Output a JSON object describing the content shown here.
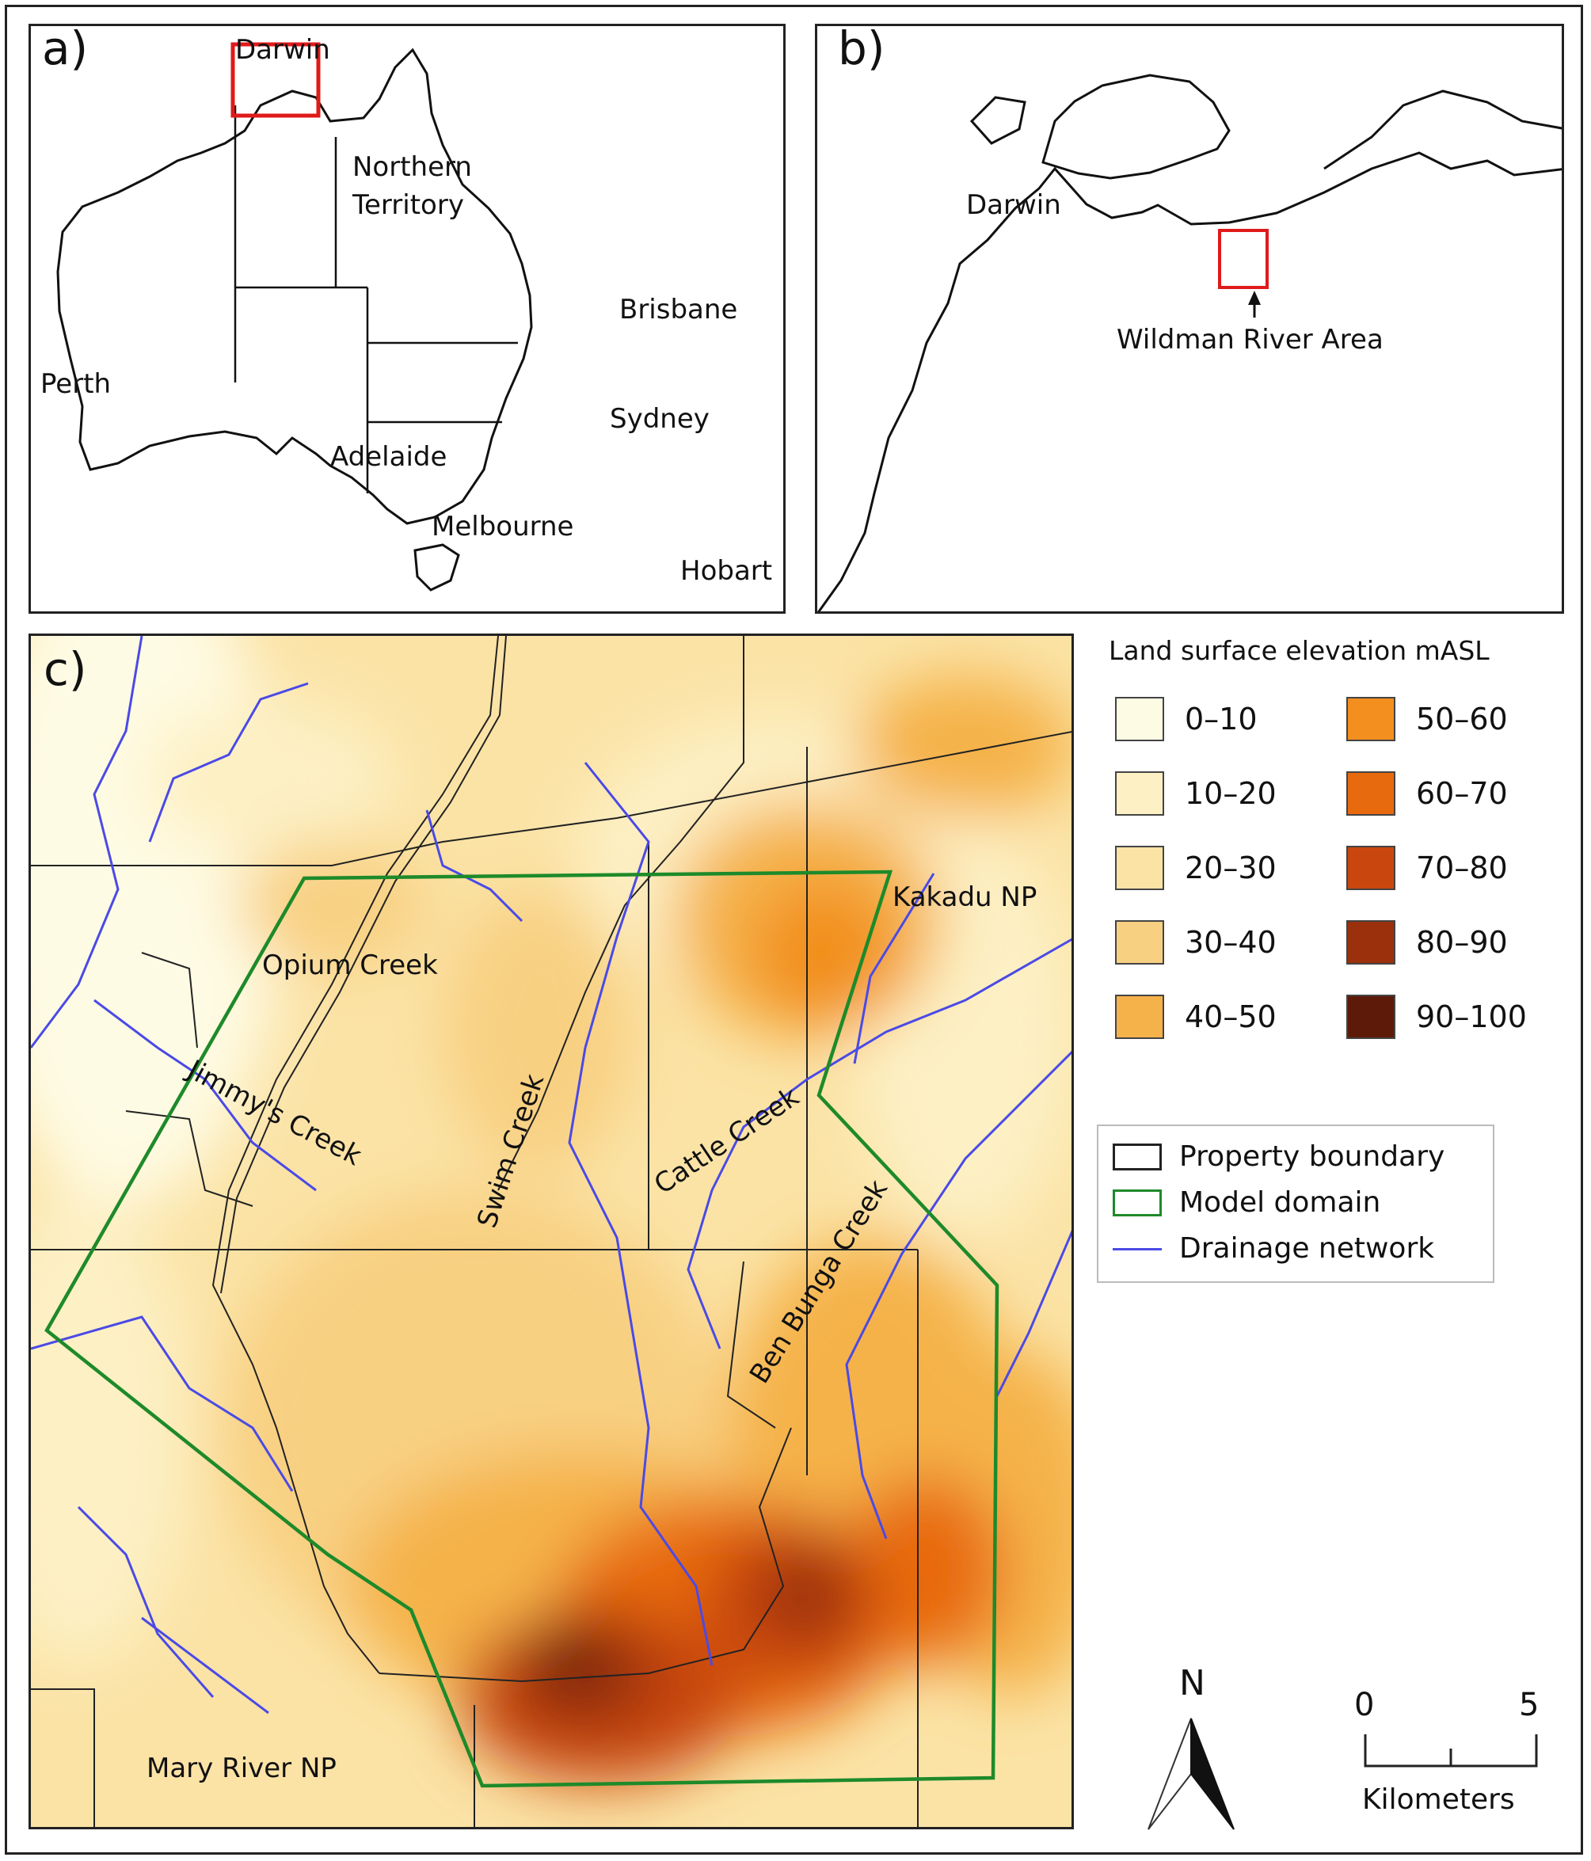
{
  "panel_a": {
    "label": "a)",
    "cities": {
      "darwin": "Darwin",
      "northern_territory_line1": "Northern",
      "northern_territory_line2": "Territory",
      "brisbane": "Brisbane",
      "perth": "Perth",
      "sydney": "Sydney",
      "adelaide": "Adelaide",
      "melbourne": "Melbourne",
      "hobart": "Hobart"
    }
  },
  "panel_b": {
    "label": "b)",
    "darwin": "Darwin",
    "area": "Wildman River Area"
  },
  "panel_c": {
    "label": "c)",
    "places": {
      "opium_creek": "Opium Creek",
      "jimmys_creek": "Jimmy's Creek",
      "swim_creek": "Swim Creek",
      "cattle_creek": "Cattle Creek",
      "ben_bunga_creek": "Ben Bunga Creek",
      "kakadu": "Kakadu NP",
      "mary_river": "Mary River NP"
    }
  },
  "elevation_legend": {
    "title": "Land surface elevation mASL",
    "items": [
      {
        "label": "0–10",
        "color": "#fefbe4"
      },
      {
        "label": "10–20",
        "color": "#fdf0c4"
      },
      {
        "label": "20–30",
        "color": "#fbe3a6"
      },
      {
        "label": "30–40",
        "color": "#f8d082"
      },
      {
        "label": "40–50",
        "color": "#f5b24a"
      },
      {
        "label": "50–60",
        "color": "#f28f1e"
      },
      {
        "label": "60–70",
        "color": "#e86a0f"
      },
      {
        "label": "70–80",
        "color": "#c9470e"
      },
      {
        "label": "80–90",
        "color": "#9a300c"
      },
      {
        "label": "90–100",
        "color": "#5e1a08"
      }
    ]
  },
  "feature_legend": {
    "property": "Property boundary",
    "model": "Model domain",
    "drainage": "Drainage network",
    "colors": {
      "property": "#222222",
      "model": "#1e8a2a",
      "drainage": "#4a4ae6"
    }
  },
  "north_arrow": {
    "label": "N"
  },
  "scale_bar": {
    "start": "0",
    "end": "5",
    "unit": "Kilometers"
  }
}
